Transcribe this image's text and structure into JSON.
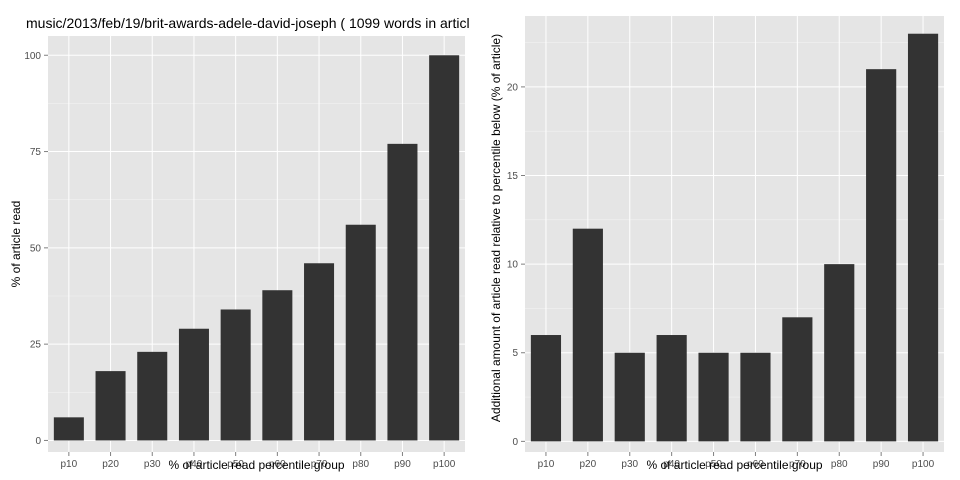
{
  "chart_data": [
    {
      "type": "bar",
      "title": "music/2013/feb/19/brit-awards-adele-david-joseph ( 1099 words in articl",
      "xlabel": "% of article read percentile group",
      "ylabel": "% of article read",
      "categories": [
        "p10",
        "p20",
        "p30",
        "p40",
        "p50",
        "p60",
        "p70",
        "p80",
        "p90",
        "p100"
      ],
      "values": [
        6,
        18,
        23,
        29,
        34,
        39,
        46,
        56,
        77,
        100
      ],
      "ylim": [
        -3,
        105
      ],
      "yticks": [
        0,
        25,
        50,
        75,
        100
      ],
      "grid": true,
      "bar_color": "#333333",
      "background_color": "#e5e5e5"
    },
    {
      "type": "bar",
      "title": "",
      "xlabel": "% of article read percentile group",
      "ylabel": "Additional amount of article read relative to percentile below (% of article)",
      "categories": [
        "p10",
        "p20",
        "p30",
        "p40",
        "p50",
        "p60",
        "p70",
        "p80",
        "p90",
        "p100"
      ],
      "values": [
        6,
        12,
        5,
        6,
        5,
        5,
        7,
        10,
        21,
        23
      ],
      "ylim": [
        -0.6,
        24
      ],
      "yticks": [
        0,
        5,
        10,
        15,
        20
      ],
      "grid": true,
      "bar_color": "#333333",
      "background_color": "#e5e5e5"
    }
  ]
}
